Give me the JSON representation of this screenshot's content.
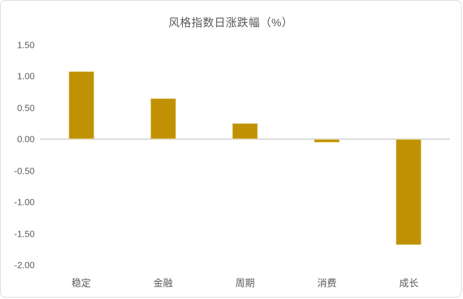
{
  "chart_data": {
    "type": "bar",
    "title": "风格指数日涨跌幅（%）",
    "categories": [
      "稳定",
      "金融",
      "周期",
      "消费",
      "成长"
    ],
    "values": [
      1.08,
      0.65,
      0.25,
      -0.05,
      -1.68
    ],
    "xlabel": "",
    "ylabel": "",
    "ylim": [
      -2.0,
      1.5
    ],
    "ytick_step": 0.5,
    "yticks": [
      {
        "label": "1.50",
        "v": 1.5
      },
      {
        "label": "1.00",
        "v": 1.0
      },
      {
        "label": "0.50",
        "v": 0.5
      },
      {
        "label": "0.00",
        "v": 0.0
      },
      {
        "label": "-0.50",
        "v": -0.5
      },
      {
        "label": "-1.00",
        "v": -1.0
      },
      {
        "label": "-1.50",
        "v": -1.5
      },
      {
        "label": "-2.00",
        "v": -2.0
      }
    ],
    "grid": false,
    "legend": false,
    "colors": {
      "bar_fill": "#C09203",
      "bar_border": "#E2D288",
      "axis_line": "#D9D9D9",
      "text": "#595959",
      "card_border": "#D7DBE0",
      "background": "#FFFFFF"
    }
  }
}
